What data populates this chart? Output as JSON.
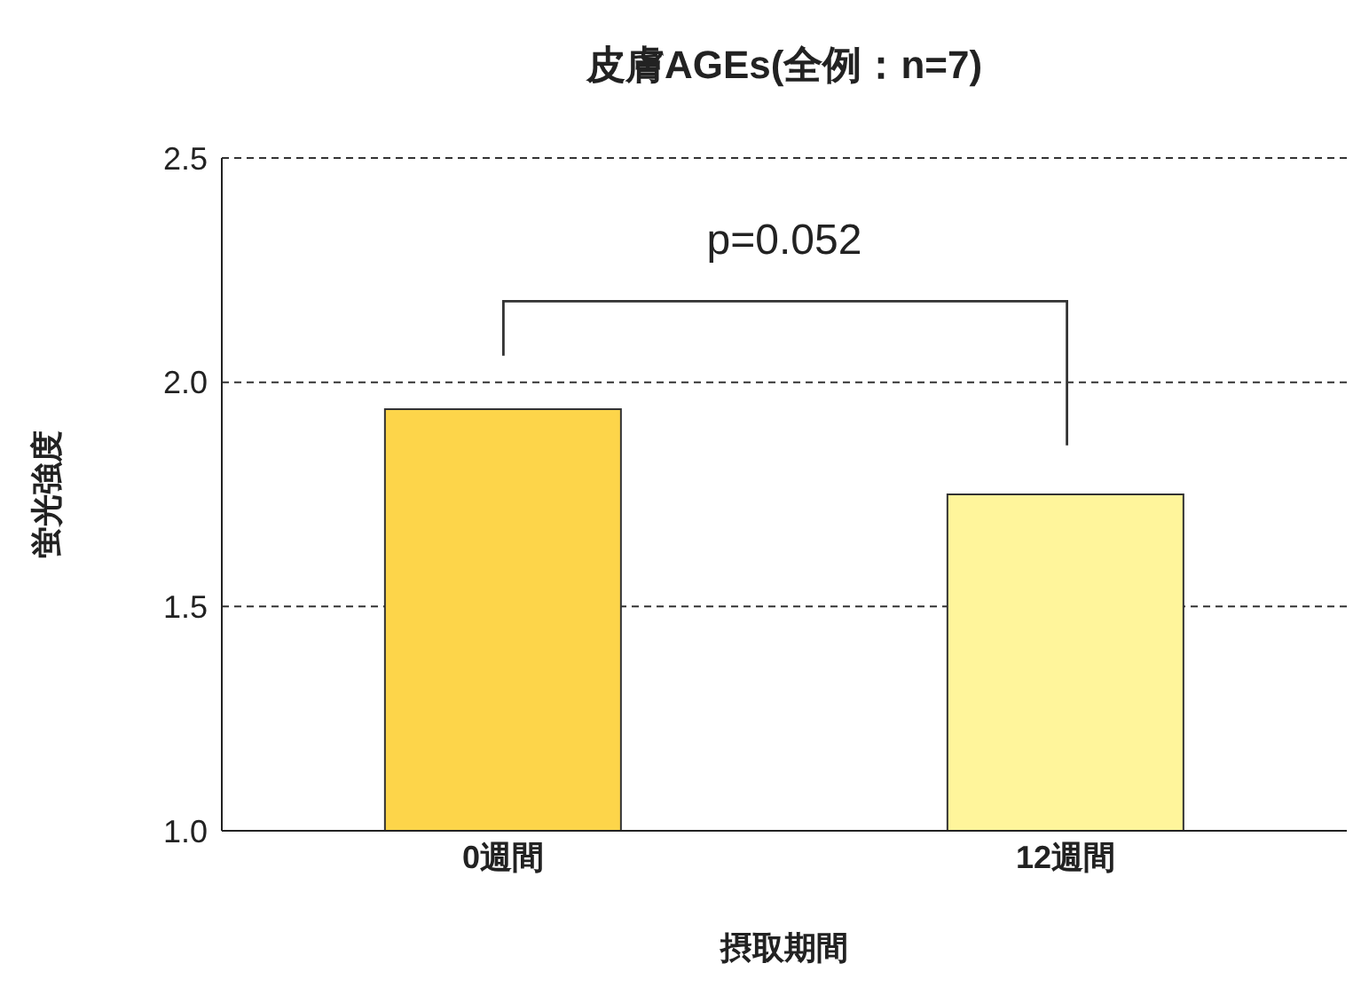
{
  "chart_data": {
    "type": "bar",
    "title": "皮膚AGEs(全例：n=7)",
    "xlabel": "摂取期間",
    "ylabel": "蛍光強度",
    "categories": [
      "0週間",
      "12週間"
    ],
    "values": [
      1.94,
      1.75
    ],
    "colors": [
      "#fdd54a",
      "#fff59b"
    ],
    "ylim": [
      1.0,
      2.5
    ],
    "yticks": [
      {
        "value": 1.0,
        "label": "1.0"
      },
      {
        "value": 1.5,
        "label": "1.5"
      },
      {
        "value": 2.0,
        "label": "2.0"
      },
      {
        "value": 2.5,
        "label": "2.5"
      }
    ],
    "grid": "y",
    "annotations": [
      "p=0.052"
    ]
  }
}
